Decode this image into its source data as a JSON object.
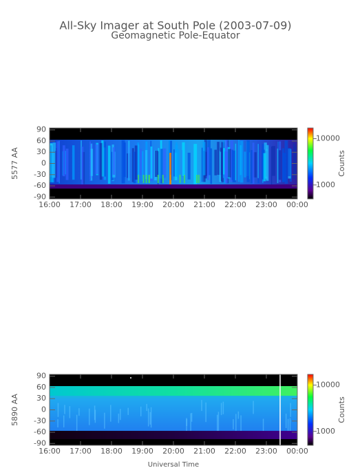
{
  "chart_data": [
    {
      "type": "keogram",
      "title": "All-Sky Imager at South Pole (2003-07-09)",
      "subtitle": "Geomagnetic Pole-Equator",
      "ylabel": "5577 AA",
      "xlim": [
        16,
        24
      ],
      "xticks": [
        {
          "value": 16,
          "label": "16:00"
        },
        {
          "value": 17,
          "label": "17:00"
        },
        {
          "value": 18,
          "label": "18:00"
        },
        {
          "value": 19,
          "label": "19:00"
        },
        {
          "value": 20,
          "label": "20:00"
        },
        {
          "value": 21,
          "label": "21:00"
        },
        {
          "value": 22,
          "label": "22:00"
        },
        {
          "value": 23,
          "label": "23:00"
        },
        {
          "value": 24,
          "label": "00:00"
        }
      ],
      "ylim": [
        -95,
        95
      ],
      "yticks": [
        90,
        60,
        30,
        0,
        -30,
        -60,
        -90
      ],
      "colorbar": {
        "label": "Counts",
        "scale": "log",
        "lim": [
          500,
          17000
        ],
        "ticks": [
          10000,
          1000
        ]
      }
    },
    {
      "type": "keogram",
      "ylabel": "5890 AA",
      "xlabel": "Universal Time",
      "xlim": [
        16,
        24
      ],
      "xticks": [
        {
          "value": 16,
          "label": "16:00"
        },
        {
          "value": 17,
          "label": "17:00"
        },
        {
          "value": 18,
          "label": "18:00"
        },
        {
          "value": 19,
          "label": "19:00"
        },
        {
          "value": 20,
          "label": "20:00"
        },
        {
          "value": 21,
          "label": "21:00"
        },
        {
          "value": 22,
          "label": "22:00"
        },
        {
          "value": 23,
          "label": "23:00"
        },
        {
          "value": 24,
          "label": "00:00"
        }
      ],
      "ylim": [
        -95,
        95
      ],
      "yticks": [
        90,
        60,
        30,
        0,
        -30,
        -60,
        -90
      ],
      "colorbar": {
        "label": "Counts",
        "scale": "log",
        "lim": [
          500,
          17000
        ],
        "ticks": [
          10000,
          1000
        ]
      }
    }
  ]
}
